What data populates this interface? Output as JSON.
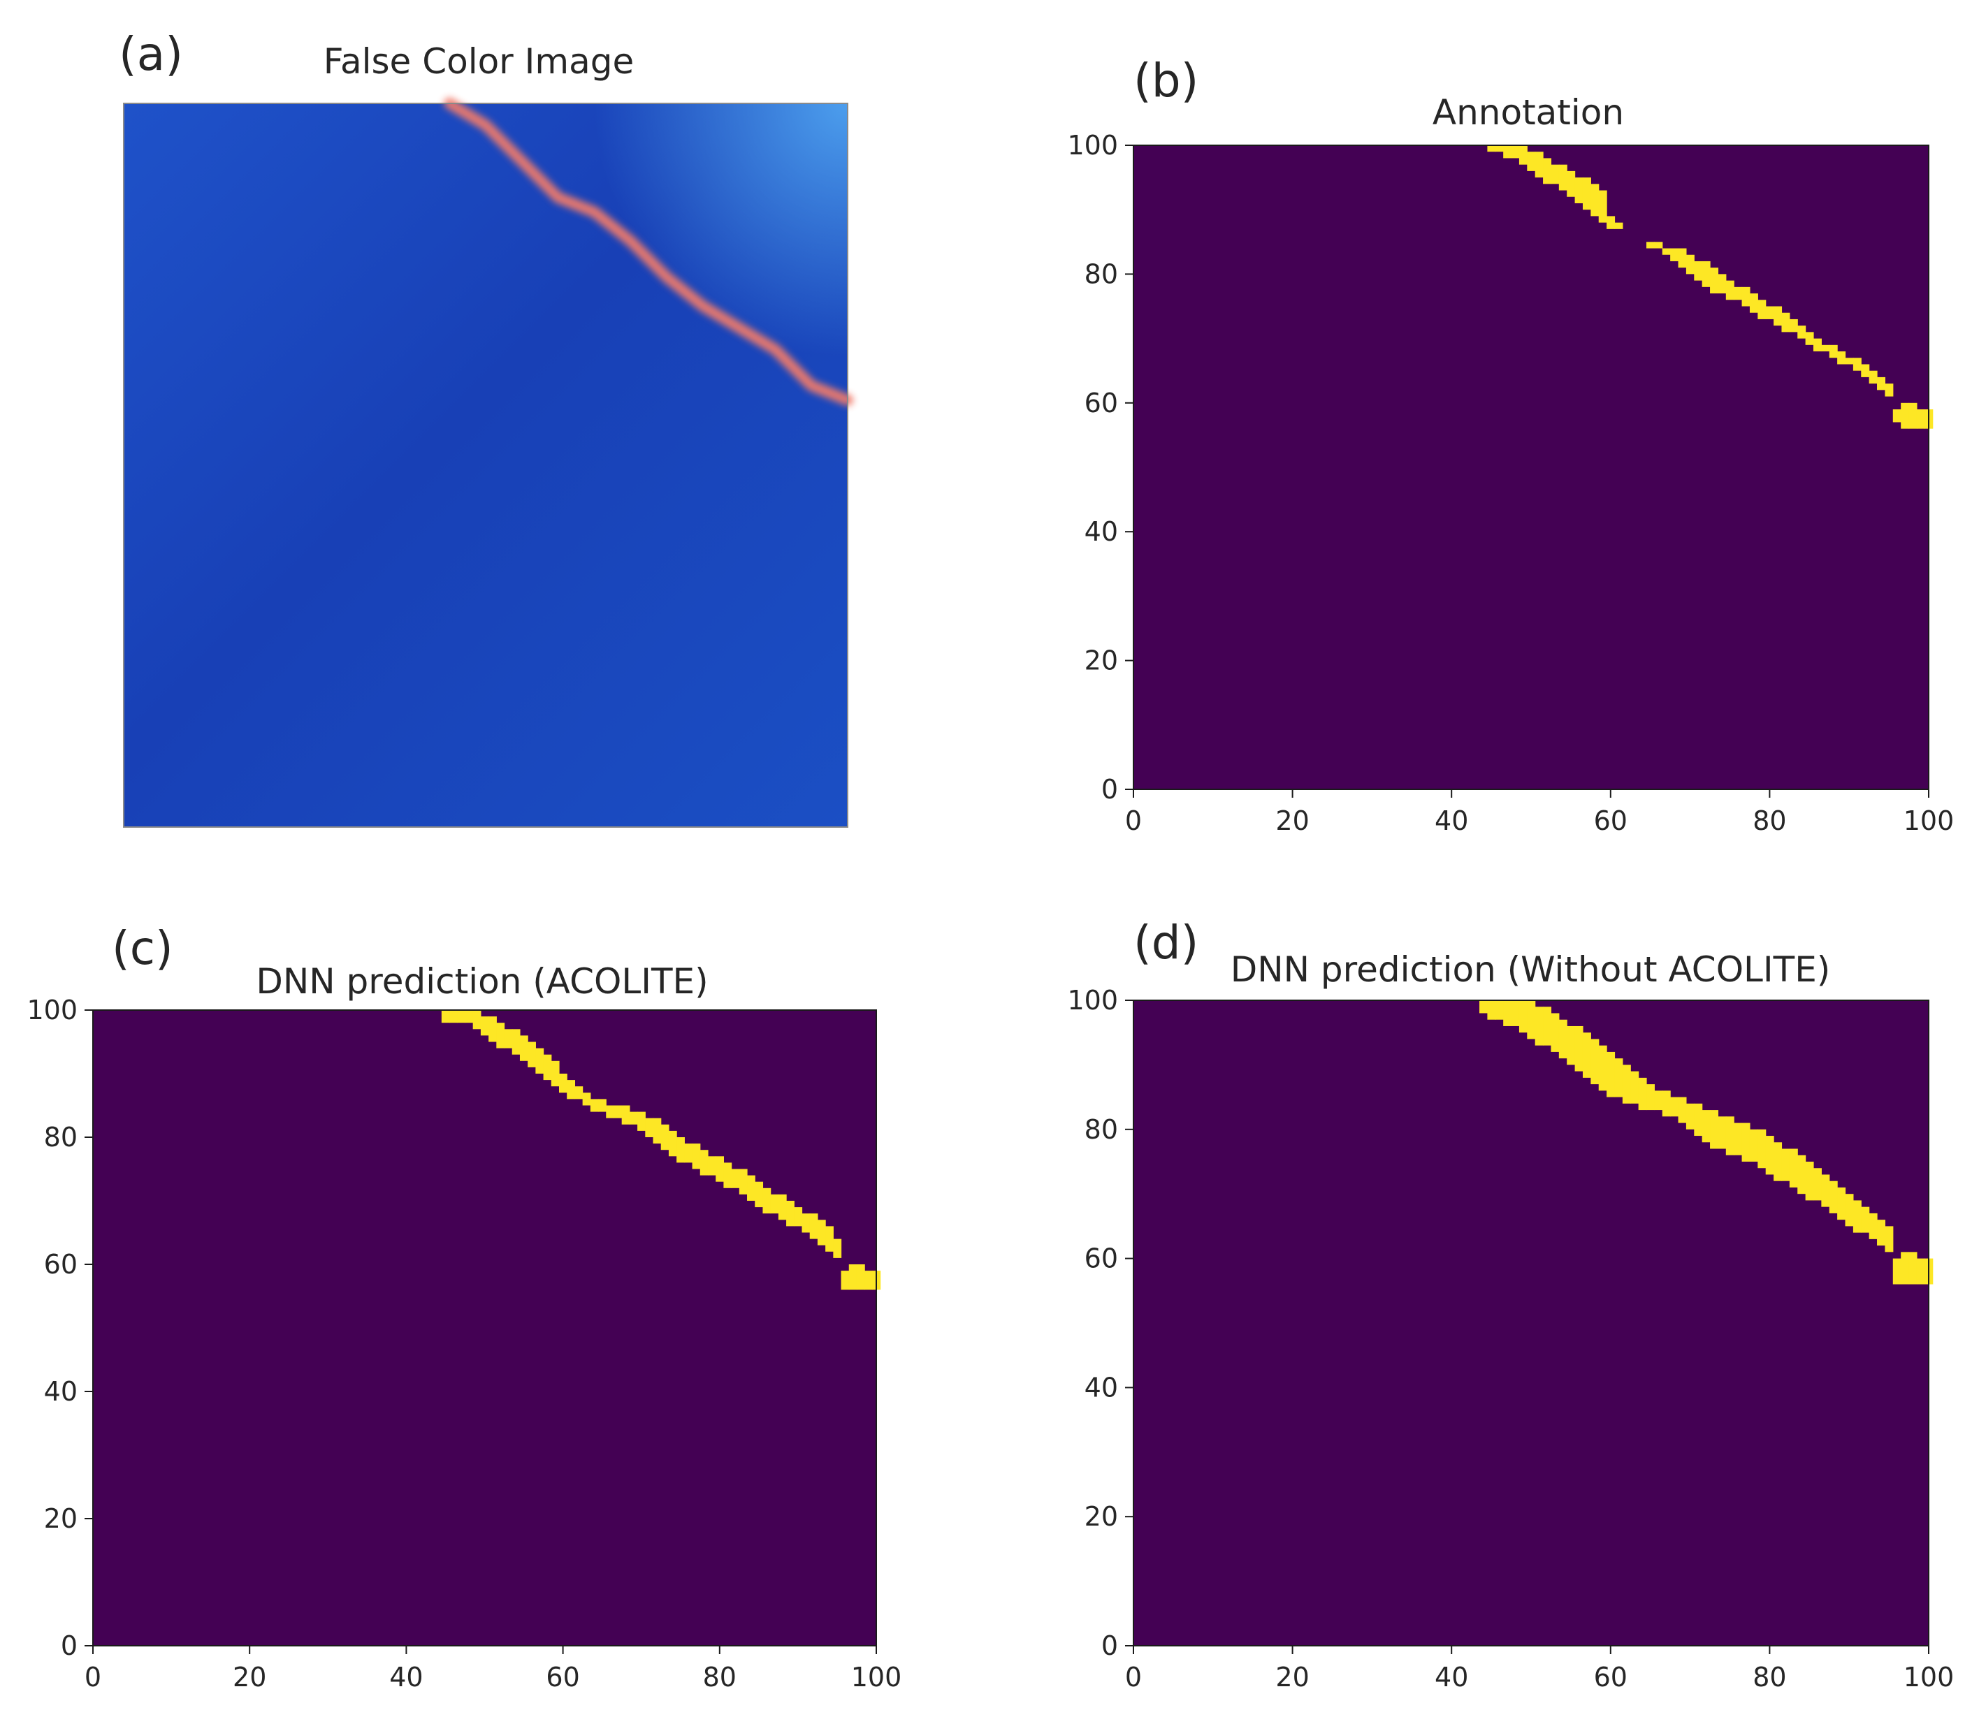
{
  "colors": {
    "background": "#440154",
    "annotation": "#fde725",
    "water_dark": "#0e2f93",
    "water_light": "#1e5fd8",
    "plume": "#f07a6a"
  },
  "chart_data": [
    {
      "id": "a",
      "type": "image",
      "panel_label": "(a)",
      "title": "False Color Image",
      "feature": "diagonal reddish streak across a blue water surface",
      "path": [
        [
          45,
          100
        ],
        [
          50,
          97
        ],
        [
          55,
          92
        ],
        [
          60,
          87
        ],
        [
          65,
          85
        ],
        [
          70,
          81
        ],
        [
          75,
          76
        ],
        [
          80,
          72
        ],
        [
          85,
          69
        ],
        [
          90,
          66
        ],
        [
          95,
          61
        ],
        [
          100,
          59
        ]
      ],
      "xlim": [
        0,
        100
      ],
      "ylim": [
        0,
        100
      ]
    },
    {
      "id": "b",
      "type": "heatmap",
      "panel_label": "(b)",
      "title": "Annotation",
      "xlim": [
        0,
        100
      ],
      "ylim": [
        0,
        100
      ],
      "xticks": [
        "0",
        "20",
        "40",
        "60",
        "80",
        "100"
      ],
      "yticks": [
        "0",
        "20",
        "40",
        "60",
        "80",
        "100"
      ],
      "values": "binary mask: 0 = background, 1 = annotated pixels",
      "mask_columns": [
        [
          45,
          99,
          100
        ],
        [
          46,
          99,
          100
        ],
        [
          47,
          98,
          100
        ],
        [
          48,
          98,
          100
        ],
        [
          49,
          97,
          100
        ],
        [
          50,
          96,
          99
        ],
        [
          51,
          95,
          99
        ],
        [
          52,
          94,
          98
        ],
        [
          53,
          94,
          97
        ],
        [
          54,
          93,
          97
        ],
        [
          55,
          92,
          96
        ],
        [
          56,
          91,
          95
        ],
        [
          57,
          90,
          95
        ],
        [
          58,
          89,
          94
        ],
        [
          59,
          88,
          93
        ],
        [
          60,
          87,
          89
        ],
        [
          61,
          87,
          88
        ],
        [
          65,
          84,
          85
        ],
        [
          66,
          84,
          85
        ],
        [
          67,
          83,
          84
        ],
        [
          68,
          82,
          84
        ],
        [
          69,
          81,
          84
        ],
        [
          70,
          80,
          83
        ],
        [
          71,
          79,
          82
        ],
        [
          72,
          78,
          82
        ],
        [
          73,
          77,
          81
        ],
        [
          74,
          77,
          80
        ],
        [
          75,
          76,
          79
        ],
        [
          76,
          76,
          78
        ],
        [
          77,
          75,
          78
        ],
        [
          78,
          74,
          77
        ],
        [
          79,
          73,
          76
        ],
        [
          80,
          73,
          75
        ],
        [
          81,
          72,
          75
        ],
        [
          82,
          71,
          74
        ],
        [
          83,
          71,
          73
        ],
        [
          84,
          70,
          72
        ],
        [
          85,
          69,
          71
        ],
        [
          86,
          68,
          70
        ],
        [
          87,
          68,
          69
        ],
        [
          88,
          67,
          69
        ],
        [
          89,
          66,
          68
        ],
        [
          90,
          66,
          67
        ],
        [
          91,
          65,
          67
        ],
        [
          92,
          64,
          66
        ],
        [
          93,
          63,
          65
        ],
        [
          94,
          62,
          64
        ],
        [
          95,
          61,
          63
        ],
        [
          96,
          57,
          59
        ],
        [
          97,
          56,
          60
        ],
        [
          98,
          56,
          60
        ],
        [
          99,
          56,
          59
        ],
        [
          100,
          56,
          59
        ]
      ]
    },
    {
      "id": "c",
      "type": "heatmap",
      "panel_label": "(c)",
      "title": "DNN prediction (ACOLITE)",
      "xlim": [
        0,
        100
      ],
      "ylim": [
        0,
        100
      ],
      "xticks": [
        "0",
        "20",
        "40",
        "60",
        "80",
        "100"
      ],
      "yticks": [
        "0",
        "20",
        "40",
        "60",
        "80",
        "100"
      ],
      "values": "binary mask: 0 = background, 1 = predicted pixels",
      "mask_columns": [
        [
          45,
          98,
          100
        ],
        [
          46,
          98,
          100
        ],
        [
          47,
          98,
          100
        ],
        [
          48,
          98,
          100
        ],
        [
          49,
          97,
          100
        ],
        [
          50,
          96,
          99
        ],
        [
          51,
          95,
          99
        ],
        [
          52,
          94,
          98
        ],
        [
          53,
          94,
          97
        ],
        [
          54,
          93,
          97
        ],
        [
          55,
          92,
          96
        ],
        [
          56,
          91,
          95
        ],
        [
          57,
          90,
          94
        ],
        [
          58,
          89,
          93
        ],
        [
          59,
          88,
          92
        ],
        [
          60,
          87,
          90
        ],
        [
          61,
          86,
          89
        ],
        [
          62,
          86,
          88
        ],
        [
          63,
          85,
          87
        ],
        [
          64,
          84,
          86
        ],
        [
          65,
          84,
          86
        ],
        [
          66,
          83,
          85
        ],
        [
          67,
          83,
          85
        ],
        [
          68,
          82,
          85
        ],
        [
          69,
          82,
          84
        ],
        [
          70,
          81,
          84
        ],
        [
          71,
          80,
          83
        ],
        [
          72,
          79,
          83
        ],
        [
          73,
          78,
          82
        ],
        [
          74,
          77,
          81
        ],
        [
          75,
          76,
          80
        ],
        [
          76,
          76,
          79
        ],
        [
          77,
          75,
          79
        ],
        [
          78,
          74,
          78
        ],
        [
          79,
          74,
          77
        ],
        [
          80,
          73,
          77
        ],
        [
          81,
          72,
          76
        ],
        [
          82,
          72,
          75
        ],
        [
          83,
          71,
          75
        ],
        [
          84,
          70,
          74
        ],
        [
          85,
          69,
          73
        ],
        [
          86,
          68,
          72
        ],
        [
          87,
          68,
          71
        ],
        [
          88,
          67,
          71
        ],
        [
          89,
          66,
          70
        ],
        [
          90,
          66,
          69
        ],
        [
          91,
          65,
          68
        ],
        [
          92,
          64,
          68
        ],
        [
          93,
          63,
          67
        ],
        [
          94,
          62,
          66
        ],
        [
          95,
          61,
          64
        ],
        [
          96,
          56,
          59
        ],
        [
          97,
          56,
          60
        ],
        [
          98,
          56,
          60
        ],
        [
          99,
          56,
          59
        ],
        [
          100,
          56,
          59
        ]
      ]
    },
    {
      "id": "d",
      "type": "heatmap",
      "panel_label": "(d)",
      "title": "DNN prediction (Without ACOLITE)",
      "xlim": [
        0,
        100
      ],
      "ylim": [
        0,
        100
      ],
      "xticks": [
        "0",
        "20",
        "40",
        "60",
        "80",
        "100"
      ],
      "yticks": [
        "0",
        "20",
        "40",
        "60",
        "80",
        "100"
      ],
      "values": "binary mask: 0 = background, 1 = predicted pixels",
      "mask_columns": [
        [
          44,
          98,
          100
        ],
        [
          45,
          97,
          100
        ],
        [
          46,
          97,
          100
        ],
        [
          47,
          96,
          100
        ],
        [
          48,
          96,
          100
        ],
        [
          49,
          95,
          100
        ],
        [
          50,
          94,
          100
        ],
        [
          51,
          93,
          99
        ],
        [
          52,
          93,
          99
        ],
        [
          53,
          92,
          98
        ],
        [
          54,
          91,
          97
        ],
        [
          55,
          90,
          96
        ],
        [
          56,
          89,
          96
        ],
        [
          57,
          88,
          95
        ],
        [
          58,
          87,
          94
        ],
        [
          59,
          86,
          93
        ],
        [
          60,
          85,
          92
        ],
        [
          61,
          85,
          91
        ],
        [
          62,
          84,
          90
        ],
        [
          63,
          84,
          89
        ],
        [
          64,
          83,
          88
        ],
        [
          65,
          83,
          87
        ],
        [
          66,
          83,
          86
        ],
        [
          67,
          82,
          86
        ],
        [
          68,
          82,
          85
        ],
        [
          69,
          81,
          85
        ],
        [
          70,
          80,
          84
        ],
        [
          71,
          79,
          84
        ],
        [
          72,
          78,
          83
        ],
        [
          73,
          77,
          83
        ],
        [
          74,
          77,
          82
        ],
        [
          75,
          76,
          82
        ],
        [
          76,
          76,
          81
        ],
        [
          77,
          75,
          81
        ],
        [
          78,
          75,
          80
        ],
        [
          79,
          74,
          80
        ],
        [
          80,
          73,
          79
        ],
        [
          81,
          72,
          78
        ],
        [
          82,
          72,
          77
        ],
        [
          83,
          71,
          77
        ],
        [
          84,
          70,
          76
        ],
        [
          85,
          69,
          75
        ],
        [
          86,
          69,
          74
        ],
        [
          87,
          68,
          73
        ],
        [
          88,
          67,
          72
        ],
        [
          89,
          66,
          71
        ],
        [
          90,
          65,
          70
        ],
        [
          91,
          64,
          69
        ],
        [
          92,
          64,
          68
        ],
        [
          93,
          63,
          67
        ],
        [
          94,
          62,
          66
        ],
        [
          95,
          61,
          65
        ],
        [
          96,
          56,
          60
        ],
        [
          97,
          56,
          61
        ],
        [
          98,
          56,
          61
        ],
        [
          99,
          56,
          60
        ],
        [
          100,
          56,
          60
        ]
      ]
    }
  ]
}
